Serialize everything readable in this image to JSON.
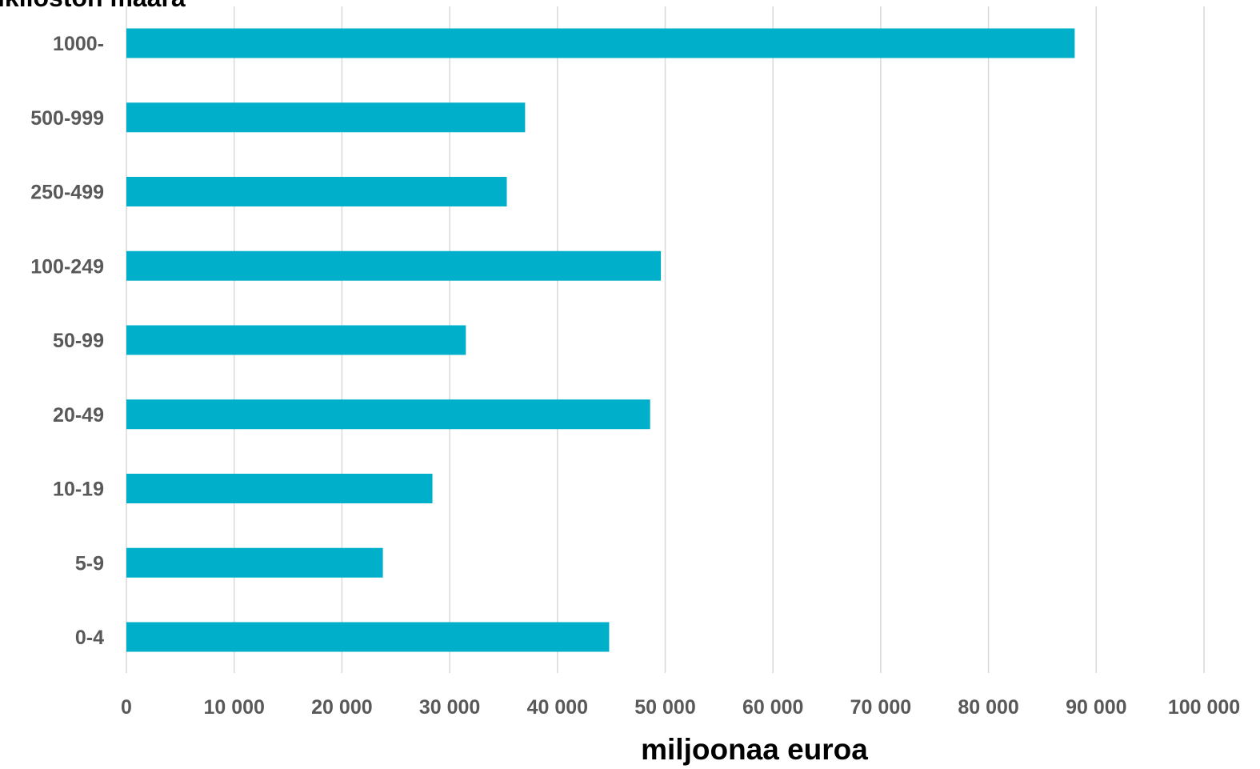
{
  "chart_data": {
    "type": "bar",
    "orientation": "horizontal",
    "ylabel": "ikilöstön määrä",
    "xlabel": "miljoonaa euroa",
    "categories": [
      "1000-",
      "500-999",
      "250-499",
      "100-249",
      "50-99",
      "20-49",
      "10-19",
      "5-9",
      "0-4"
    ],
    "values": [
      88000,
      37000,
      35300,
      49600,
      31500,
      48600,
      28400,
      23800,
      44800
    ],
    "xlim": [
      0,
      100000
    ],
    "xticks": [
      0,
      10000,
      20000,
      30000,
      40000,
      50000,
      60000,
      70000,
      80000,
      90000,
      100000
    ],
    "xtick_labels": [
      "0",
      "10 000",
      "20 000",
      "30 000",
      "40 000",
      "50 000",
      "60 000",
      "70 000",
      "80 000",
      "90 000",
      "100 000"
    ],
    "grid": "vertical",
    "legend": "none",
    "colors": {
      "bar": "#00B0CA",
      "grid": "#D9D9D9",
      "tick_text": "#595959",
      "title_text": "#000000"
    }
  }
}
